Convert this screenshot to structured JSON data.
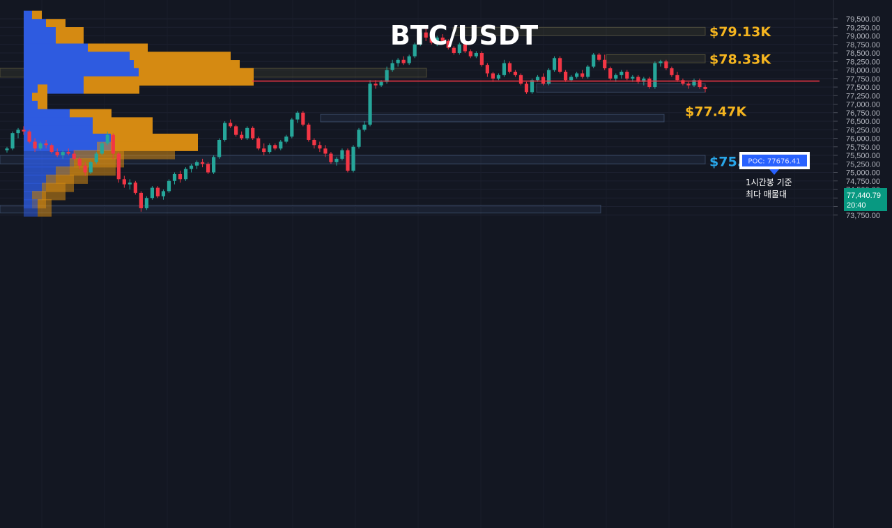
{
  "chart_data": {
    "type": "candlestick",
    "title": "BTC/USDT",
    "pair": "BTC/USDT",
    "price_axis": {
      "ticks": [
        "79,500.00",
        "79,250.00",
        "79,000.00",
        "78,750.00",
        "78,500.00",
        "78,250.00",
        "78,000.00",
        "77,750.00",
        "77,500.00",
        "77,250.00",
        "77,000.00",
        "76,750.00",
        "76,500.00",
        "76,250.00",
        "76,000.00",
        "75,750.00",
        "75,500.00",
        "75,250.00",
        "75,000.00",
        "74,750.00",
        "74,500.00",
        "74,250.00",
        "74,000.00",
        "73,750.00"
      ],
      "range": [
        73650,
        79720
      ]
    },
    "last_price": {
      "label": "77,440.79",
      "time": "20:40",
      "value": 77440.79
    },
    "poc": {
      "label": "POC: 77676.41",
      "value": 77676.41,
      "note_line1": "1시간봉 기준",
      "note_line2": "최다 매물대"
    },
    "levels": [
      {
        "label": "$79.13K",
        "value": 79130,
        "color": "#f5b51f"
      },
      {
        "label": "$78.33K",
        "value": 78330,
        "color": "#f5b51f"
      },
      {
        "label": "$77.47K",
        "value": 77470,
        "color": "#f5b51f"
      },
      {
        "label": "$75.33K",
        "value": 75330,
        "color": "#29a6e8"
      }
    ],
    "zones": [
      {
        "low": 79020,
        "high": 79250,
        "kind": "supply"
      },
      {
        "low": 78210,
        "high": 78450,
        "kind": "supply"
      },
      {
        "low": 77790,
        "high": 78050,
        "kind": "supply"
      },
      {
        "low": 77350,
        "high": 77600,
        "kind": "demand"
      },
      {
        "low": 76480,
        "high": 76700,
        "kind": "demand"
      },
      {
        "low": 75250,
        "high": 75500,
        "kind": "demand"
      },
      {
        "low": 73810,
        "high": 74040,
        "kind": "demand"
      }
    ],
    "volume_profile": [
      {
        "price": 79480,
        "buy": 12,
        "sell": 14
      },
      {
        "price": 79240,
        "buy": 32,
        "sell": 28
      },
      {
        "price": 79000,
        "buy": 46,
        "sell": 40
      },
      {
        "price": 78760,
        "buy": 46,
        "sell": 40
      },
      {
        "price": 78520,
        "buy": 92,
        "sell": 86
      },
      {
        "price": 78280,
        "buy": 152,
        "sell": 145
      },
      {
        "price": 78040,
        "buy": 158,
        "sell": 152
      },
      {
        "price": 77800,
        "buy": 165,
        "sell": 165
      },
      {
        "price": 77560,
        "buy": 86,
        "sell": 80
      },
      {
        "price": 77320,
        "buy": 20,
        "sell": 14
      },
      {
        "price": 77080,
        "buy": 12,
        "sell": 8
      },
      {
        "price": 76840,
        "buy": 20,
        "sell": 14
      },
      {
        "price": 76600,
        "buy": 66,
        "sell": 60
      },
      {
        "price": 76360,
        "buy": 99,
        "sell": 86
      },
      {
        "price": 76120,
        "buy": 99,
        "sell": 80
      },
      {
        "price": 75880,
        "buy": 125,
        "sell": 125
      },
      {
        "price": 75640,
        "buy": 105,
        "sell": 112
      },
      {
        "price": 75400,
        "buy": 72,
        "sell": 72
      },
      {
        "price": 75160,
        "buy": 66,
        "sell": 66
      },
      {
        "price": 74920,
        "buy": 46,
        "sell": 46
      },
      {
        "price": 74680,
        "buy": 32,
        "sell": 40
      },
      {
        "price": 74440,
        "buy": 26,
        "sell": 34
      },
      {
        "price": 74200,
        "buy": 12,
        "sell": 20
      },
      {
        "price": 73960,
        "buy": 20,
        "sell": 20
      }
    ],
    "candles": [
      [
        75650,
        75750,
        75580,
        75700
      ],
      [
        75700,
        76200,
        75650,
        76150
      ],
      [
        76150,
        76300,
        76000,
        76250
      ],
      [
        76250,
        76350,
        76100,
        76200
      ],
      [
        76200,
        76250,
        75850,
        75900
      ],
      [
        75900,
        76000,
        75600,
        75700
      ],
      [
        75700,
        75900,
        75650,
        75850
      ],
      [
        75850,
        75950,
        75700,
        75800
      ],
      [
        75800,
        75850,
        75550,
        75600
      ],
      [
        75600,
        75700,
        75450,
        75500
      ],
      [
        75500,
        75650,
        75400,
        75600
      ],
      [
        75600,
        75700,
        75500,
        75550
      ],
      [
        75550,
        75650,
        75350,
        75400
      ],
      [
        75400,
        75450,
        75100,
        75200
      ],
      [
        75200,
        75300,
        74900,
        75000
      ],
      [
        75000,
        75350,
        74950,
        75300
      ],
      [
        75300,
        75600,
        75250,
        75550
      ],
      [
        75550,
        75900,
        75500,
        75850
      ],
      [
        75850,
        76200,
        75800,
        76100
      ],
      [
        76100,
        76150,
        75400,
        75550
      ],
      [
        75550,
        75600,
        74700,
        74800
      ],
      [
        74800,
        74900,
        74550,
        74650
      ],
      [
        74650,
        74800,
        74500,
        74700
      ],
      [
        74700,
        74750,
        74350,
        74400
      ],
      [
        74400,
        74450,
        73850,
        73950
      ],
      [
        73950,
        74300,
        73900,
        74250
      ],
      [
        74250,
        74600,
        74200,
        74550
      ],
      [
        74550,
        74600,
        74250,
        74300
      ],
      [
        74300,
        74500,
        74200,
        74450
      ],
      [
        74450,
        74800,
        74400,
        74750
      ],
      [
        74750,
        75000,
        74650,
        74950
      ],
      [
        74950,
        75050,
        74700,
        74800
      ],
      [
        74800,
        75150,
        74750,
        75100
      ],
      [
        75100,
        75250,
        75000,
        75200
      ],
      [
        75200,
        75350,
        75100,
        75300
      ],
      [
        75300,
        75400,
        75150,
        75250
      ],
      [
        75250,
        75300,
        74950,
        75000
      ],
      [
        75000,
        75500,
        74950,
        75450
      ],
      [
        75450,
        76000,
        75400,
        75950
      ],
      [
        75950,
        76500,
        75900,
        76450
      ],
      [
        76450,
        76550,
        76300,
        76350
      ],
      [
        76350,
        76400,
        76050,
        76100
      ],
      [
        76100,
        76200,
        75950,
        76000
      ],
      [
        76000,
        76350,
        75950,
        76300
      ],
      [
        76300,
        76350,
        75950,
        76000
      ],
      [
        76000,
        76050,
        75650,
        75700
      ],
      [
        75700,
        75850,
        75500,
        75600
      ],
      [
        75600,
        75850,
        75550,
        75800
      ],
      [
        75800,
        75850,
        75650,
        75700
      ],
      [
        75700,
        75950,
        75650,
        75900
      ],
      [
        75900,
        76100,
        75850,
        76050
      ],
      [
        76050,
        76600,
        76000,
        76550
      ],
      [
        76550,
        76800,
        76450,
        76750
      ],
      [
        76750,
        76800,
        76350,
        76400
      ],
      [
        76400,
        76450,
        75900,
        75950
      ],
      [
        75950,
        76000,
        75700,
        75800
      ],
      [
        75800,
        75900,
        75600,
        75700
      ],
      [
        75700,
        75800,
        75450,
        75550
      ],
      [
        75550,
        75600,
        75250,
        75300
      ],
      [
        75300,
        75450,
        75200,
        75400
      ],
      [
        75400,
        75700,
        75350,
        75650
      ],
      [
        75650,
        75700,
        75000,
        75050
      ],
      [
        75050,
        75800,
        75000,
        75750
      ],
      [
        75750,
        76300,
        75700,
        76250
      ],
      [
        76250,
        76500,
        76200,
        76400
      ],
      [
        76400,
        77700,
        76350,
        77600
      ],
      [
        77600,
        77700,
        77450,
        77550
      ],
      [
        77550,
        77700,
        77500,
        77650
      ],
      [
        77650,
        78100,
        77600,
        78000
      ],
      [
        78000,
        78300,
        77950,
        78200
      ],
      [
        78200,
        78350,
        78100,
        78300
      ],
      [
        78300,
        78400,
        78150,
        78200
      ],
      [
        78200,
        78450,
        78150,
        78400
      ],
      [
        78400,
        78800,
        78350,
        78750
      ],
      [
        78750,
        79200,
        78700,
        79100
      ],
      [
        79100,
        79250,
        78850,
        78950
      ],
      [
        78950,
        79050,
        78750,
        78800
      ],
      [
        78800,
        79000,
        78700,
        78950
      ],
      [
        78950,
        79050,
        78800,
        78850
      ],
      [
        78850,
        78900,
        78600,
        78650
      ],
      [
        78650,
        78700,
        78450,
        78500
      ],
      [
        78500,
        78800,
        78450,
        78750
      ],
      [
        78750,
        78800,
        78500,
        78550
      ],
      [
        78550,
        78600,
        78350,
        78400
      ],
      [
        78400,
        78550,
        78350,
        78500
      ],
      [
        78500,
        78550,
        78100,
        78150
      ],
      [
        78150,
        78200,
        77800,
        77900
      ],
      [
        77900,
        77950,
        77650,
        77750
      ],
      [
        77750,
        77900,
        77700,
        77850
      ],
      [
        77850,
        78300,
        77800,
        78200
      ],
      [
        78200,
        78250,
        77900,
        77950
      ],
      [
        77950,
        78000,
        77800,
        77850
      ],
      [
        77850,
        77900,
        77550,
        77600
      ],
      [
        77600,
        77650,
        77300,
        77350
      ],
      [
        77350,
        77750,
        77300,
        77700
      ],
      [
        77700,
        77850,
        77650,
        77800
      ],
      [
        77800,
        77900,
        77550,
        77600
      ],
      [
        77600,
        78050,
        77550,
        78000
      ],
      [
        78000,
        78400,
        77950,
        78350
      ],
      [
        78350,
        78400,
        77900,
        77950
      ],
      [
        77950,
        78000,
        77650,
        77700
      ],
      [
        77700,
        77850,
        77650,
        77800
      ],
      [
        77800,
        77950,
        77750,
        77900
      ],
      [
        77900,
        78000,
        77750,
        77800
      ],
      [
        77800,
        78150,
        77750,
        78100
      ],
      [
        78100,
        78500,
        78050,
        78450
      ],
      [
        78450,
        78500,
        78250,
        78300
      ],
      [
        78300,
        78450,
        78000,
        78050
      ],
      [
        78050,
        78100,
        77700,
        77750
      ],
      [
        77750,
        77900,
        77650,
        77850
      ],
      [
        77850,
        78000,
        77750,
        77950
      ],
      [
        77950,
        78000,
        77700,
        77750
      ],
      [
        77750,
        77850,
        77650,
        77800
      ],
      [
        77800,
        77850,
        77600,
        77650
      ],
      [
        77650,
        77800,
        77550,
        77750
      ],
      [
        77750,
        77800,
        77450,
        77500
      ],
      [
        77500,
        78250,
        77450,
        78200
      ],
      [
        78200,
        78300,
        78100,
        78250
      ],
      [
        78250,
        78300,
        78000,
        78050
      ],
      [
        78050,
        78100,
        77800,
        77850
      ],
      [
        77850,
        77950,
        77650,
        77700
      ],
      [
        77700,
        77750,
        77550,
        77600
      ],
      [
        77600,
        77650,
        77450,
        77550
      ],
      [
        77550,
        77750,
        77500,
        77700
      ],
      [
        77700,
        77750,
        77450,
        77500
      ],
      [
        77500,
        77550,
        77350,
        77440.79
      ]
    ]
  }
}
